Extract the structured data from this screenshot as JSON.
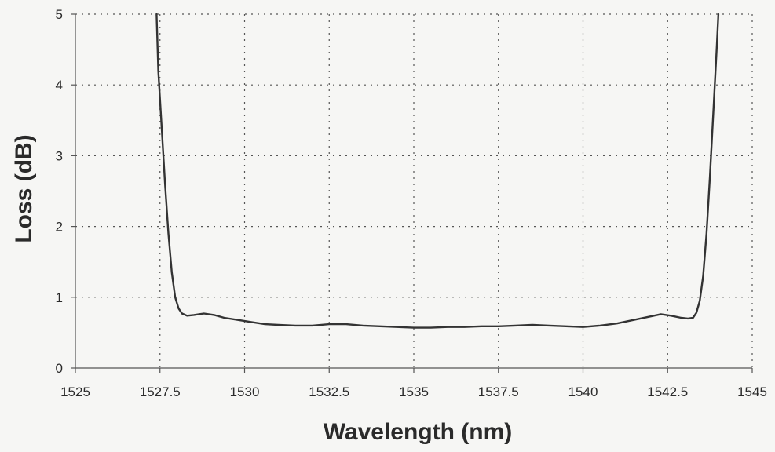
{
  "chart_data": {
    "type": "line",
    "title": "",
    "xlabel": "Wavelength (nm)",
    "ylabel": "Loss (dB)",
    "xlim": [
      1525,
      1545
    ],
    "ylim": [
      0,
      5
    ],
    "x_ticks": [
      "1525",
      "1527.5",
      "1530",
      "1532.5",
      "1535",
      "1537.5",
      "1540",
      "1542.5",
      "1545"
    ],
    "y_ticks": [
      "0",
      "1",
      "2",
      "3",
      "4",
      "5"
    ],
    "x_tick_values": [
      1525,
      1527.5,
      1530,
      1532.5,
      1535,
      1537.5,
      1540,
      1542.5,
      1545
    ],
    "y_tick_values": [
      0,
      1,
      2,
      3,
      4,
      5
    ],
    "grid": true,
    "grid_style": "dotted",
    "legend": "none",
    "series": [
      {
        "color": "#333333",
        "x": [
          1527.4,
          1527.45,
          1527.55,
          1527.65,
          1527.75,
          1527.85,
          1527.95,
          1528.05,
          1528.15,
          1528.3,
          1528.5,
          1528.8,
          1529.1,
          1529.4,
          1529.8,
          1530.2,
          1530.6,
          1531.0,
          1531.5,
          1532.0,
          1532.5,
          1533.0,
          1533.5,
          1534.0,
          1534.5,
          1535.0,
          1535.5,
          1536.0,
          1536.5,
          1537.0,
          1537.5,
          1538.0,
          1538.5,
          1539.0,
          1539.5,
          1540.0,
          1540.5,
          1541.0,
          1541.5,
          1542.0,
          1542.3,
          1542.6,
          1542.9,
          1543.1,
          1543.25,
          1543.35,
          1543.45,
          1543.55,
          1543.65,
          1543.75,
          1543.85,
          1543.95,
          1544.0
        ],
        "y": [
          5.0,
          4.2,
          3.4,
          2.6,
          1.9,
          1.35,
          1.0,
          0.84,
          0.77,
          0.74,
          0.75,
          0.77,
          0.75,
          0.71,
          0.68,
          0.65,
          0.62,
          0.61,
          0.6,
          0.6,
          0.62,
          0.62,
          0.6,
          0.59,
          0.58,
          0.57,
          0.57,
          0.58,
          0.58,
          0.59,
          0.59,
          0.6,
          0.61,
          0.6,
          0.59,
          0.58,
          0.6,
          0.63,
          0.68,
          0.73,
          0.76,
          0.74,
          0.71,
          0.7,
          0.71,
          0.78,
          0.95,
          1.3,
          1.9,
          2.7,
          3.6,
          4.5,
          5.0
        ]
      }
    ]
  }
}
